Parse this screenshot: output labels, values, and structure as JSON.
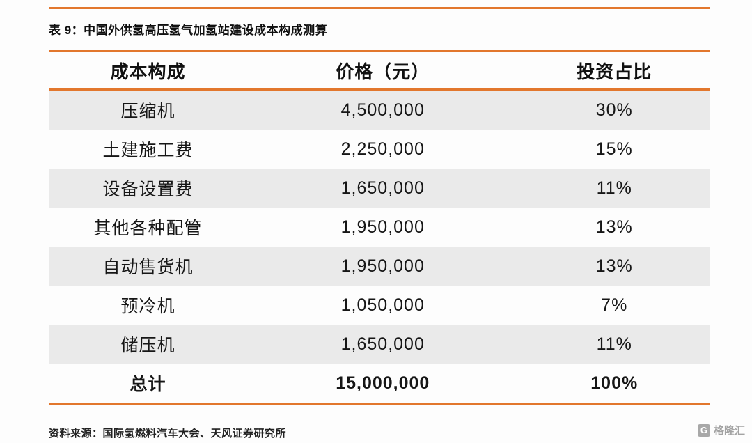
{
  "colors": {
    "accent": "#E2772D",
    "row_alt": "#EAEAEA",
    "text": "#1a1a1a",
    "watermark": "#A3A3A3"
  },
  "title": "表 9：中国外供氢高压氢气加氢站建设成本构成测算",
  "chart_data": {
    "type": "table",
    "title": "中国外供氢高压氢气加氢站建设成本构成测算",
    "columns": [
      "成本构成",
      "价格（元）",
      "投资占比"
    ],
    "rows": [
      [
        "压缩机",
        "4,500,000",
        "30%"
      ],
      [
        "土建施工费",
        "2,250,000",
        "15%"
      ],
      [
        "设备设置费",
        "1,650,000",
        "11%"
      ],
      [
        "其他各种配管",
        "1,950,000",
        "13%"
      ],
      [
        "自动售货机",
        "1,950,000",
        "13%"
      ],
      [
        "预冷机",
        "1,050,000",
        "7%"
      ],
      [
        "储压机",
        "1,650,000",
        "11%"
      ],
      [
        "总计",
        "15,000,000",
        "100%"
      ]
    ],
    "total_row_index": 7,
    "layout": {
      "alternating_shading": "odd rows gray starting with first data row",
      "alignment": "center",
      "accent_rules": "orange rule above title, above and below header, below total row"
    }
  },
  "source": "资料来源：国际氢燃料汽车大会、天风证券研究所",
  "watermark": {
    "icon": "G",
    "text": "格隆汇"
  }
}
